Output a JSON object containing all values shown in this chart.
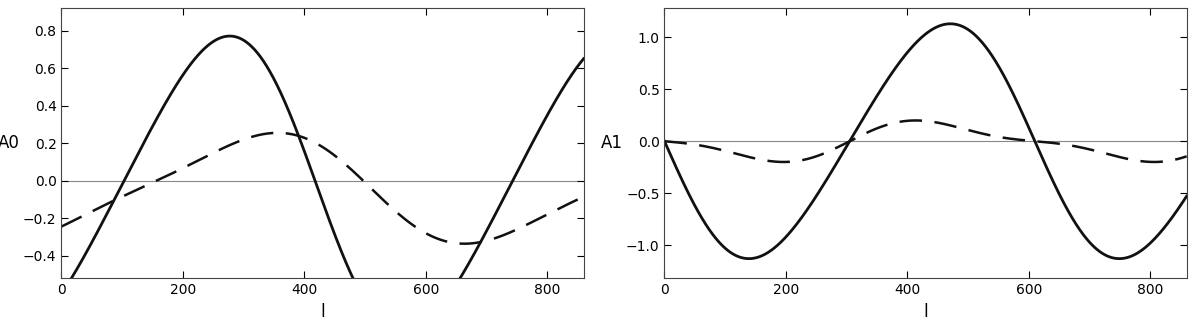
{
  "left_ylabel": "A0",
  "right_ylabel": "A1",
  "xlabel": "l",
  "xlim": [
    0,
    860
  ],
  "left_ylim": [
    -0.52,
    0.92
  ],
  "right_ylim": [
    -1.32,
    1.28
  ],
  "left_yticks": [
    -0.4,
    -0.2,
    0.0,
    0.2,
    0.4,
    0.6,
    0.8
  ],
  "right_yticks": [
    -1.0,
    -0.5,
    0.0,
    0.5,
    1.0
  ],
  "xticks": [
    0,
    200,
    400,
    600,
    800
  ],
  "bg_color": "#ffffff",
  "line_color": "#111111",
  "hline_color": "#888888",
  "solid_lw": 2.0,
  "dashed_lw": 1.8,
  "hline_lw": 0.8,
  "font_size": 12,
  "tick_labelsize": 10
}
